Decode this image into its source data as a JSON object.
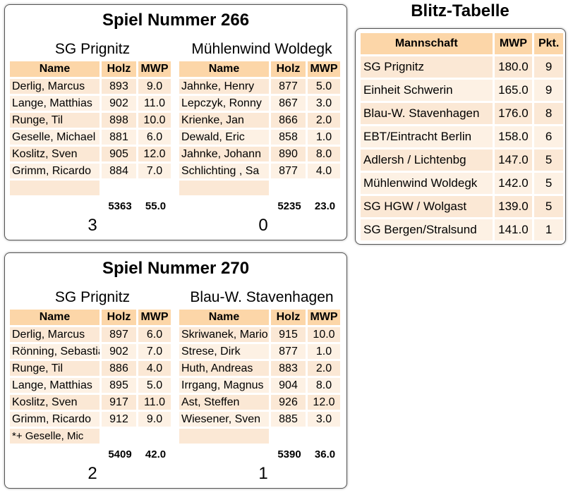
{
  "games": [
    {
      "title": "Spiel Nummer 266",
      "home": {
        "name": "SG Prignitz",
        "players": [
          {
            "name": "Derlig, Marcus",
            "holz": "893",
            "mwp": "9.0"
          },
          {
            "name": "Lange, Matthias",
            "holz": "902",
            "mwp": "11.0"
          },
          {
            "name": "Runge, Til",
            "holz": "898",
            "mwp": "10.0"
          },
          {
            "name": "Geselle, Michael",
            "holz": "881",
            "mwp": "6.0"
          },
          {
            "name": "Koslitz, Sven",
            "holz": "905",
            "mwp": "12.0"
          },
          {
            "name": "Grimm, Ricardo",
            "holz": "884",
            "mwp": "7.0"
          }
        ],
        "extra": "",
        "total_holz": "5363",
        "total_mwp": "55.0",
        "score": "3"
      },
      "away": {
        "name": "Mühlenwind Woldegk",
        "players": [
          {
            "name": "Jahnke, Henry",
            "holz": "877",
            "mwp": "5.0"
          },
          {
            "name": "Lepczyk, Ronny",
            "holz": "867",
            "mwp": "3.0"
          },
          {
            "name": "Krienke, Jan",
            "holz": "866",
            "mwp": "2.0"
          },
          {
            "name": "Dewald, Eric",
            "holz": "858",
            "mwp": "1.0"
          },
          {
            "name": "Jahnke, Johann",
            "holz": "890",
            "mwp": "8.0"
          },
          {
            "name": "Schlichting , Sa",
            "holz": "877",
            "mwp": "4.0"
          }
        ],
        "extra": "",
        "total_holz": "5235",
        "total_mwp": "23.0",
        "score": "0"
      }
    },
    {
      "title": "Spiel Nummer 270",
      "home": {
        "name": "SG Prignitz",
        "players": [
          {
            "name": "Derlig, Marcus",
            "holz": "897",
            "mwp": "6.0"
          },
          {
            "name": "Rönning, Sebastian",
            "holz": "902",
            "mwp": "7.0"
          },
          {
            "name": "Runge, Til",
            "holz": "886",
            "mwp": "4.0"
          },
          {
            "name": "Lange, Matthias",
            "holz": "895",
            "mwp": "5.0"
          },
          {
            "name": "Koslitz, Sven",
            "holz": "917",
            "mwp": "11.0"
          },
          {
            "name": "Grimm, Ricardo",
            "holz": "912",
            "mwp": "9.0"
          }
        ],
        "extra": "*+ Geselle, Mic",
        "total_holz": "5409",
        "total_mwp": "42.0",
        "score": "2"
      },
      "away": {
        "name": "Blau-W. Stavenhagen",
        "players": [
          {
            "name": "Skriwanek, Mario",
            "holz": "915",
            "mwp": "10.0"
          },
          {
            "name": "Strese, Dirk",
            "holz": "877",
            "mwp": "1.0"
          },
          {
            "name": "Huth, Andreas",
            "holz": "883",
            "mwp": "2.0"
          },
          {
            "name": "Irrgang, Magnus",
            "holz": "904",
            "mwp": "8.0"
          },
          {
            "name": "Ast, Steffen",
            "holz": "926",
            "mwp": "12.0"
          },
          {
            "name": "Wiesener, Sven",
            "holz": "885",
            "mwp": "3.0"
          }
        ],
        "extra": "",
        "total_holz": "5390",
        "total_mwp": "36.0",
        "score": "1"
      }
    }
  ],
  "columns": {
    "name": "Name",
    "holz": "Holz",
    "mwp": "MWP"
  },
  "standings": {
    "title": "Blitz-Tabelle",
    "columns": {
      "team": "Mannschaft",
      "mwp": "MWP",
      "pkt": "Pkt."
    },
    "rows": [
      {
        "team": "SG Prignitz",
        "mwp": "180.0",
        "pkt": "9"
      },
      {
        "team": "Einheit Schwerin",
        "mwp": "165.0",
        "pkt": "9"
      },
      {
        "team": "Blau-W. Stavenhagen",
        "mwp": "176.0",
        "pkt": "8"
      },
      {
        "team": "EBT/Eintracht Berlin",
        "mwp": "158.0",
        "pkt": "6"
      },
      {
        "team": "Adlersh / Lichtenbg",
        "mwp": "147.0",
        "pkt": "5"
      },
      {
        "team": "Mühlenwind Woldegk",
        "mwp": "142.0",
        "pkt": "5"
      },
      {
        "team": "SG HGW / Wolgast",
        "mwp": "139.0",
        "pkt": "5"
      },
      {
        "team": "SG Bergen/Stralsund",
        "mwp": "141.0",
        "pkt": "1"
      }
    ]
  },
  "colors": {
    "header": "#fcd6a8",
    "row_odd": "#fbe8d5",
    "row_even": "#fdf1e4"
  }
}
